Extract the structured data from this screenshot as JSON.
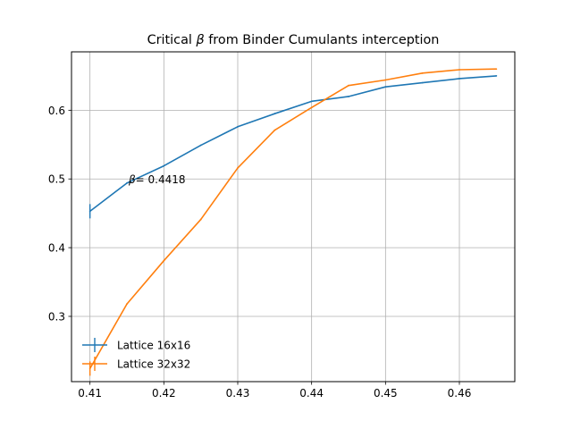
{
  "chart_data": {
    "type": "line",
    "title_prefix": "Critical ",
    "title_symbol": "β",
    "title_suffix": " from Binder Cumulants interception",
    "xlabel": "",
    "ylabel": "",
    "xlim": [
      0.4075,
      0.4675
    ],
    "ylim": [
      0.205,
      0.685
    ],
    "x_ticks": [
      0.41,
      0.42,
      0.43,
      0.44,
      0.45,
      0.46
    ],
    "x_tick_labels": [
      "0.41",
      "0.42",
      "0.43",
      "0.44",
      "0.45",
      "0.46"
    ],
    "y_ticks": [
      0.3,
      0.4,
      0.5,
      0.6
    ],
    "y_tick_labels": [
      "0.3",
      "0.4",
      "0.5",
      "0.6"
    ],
    "grid": true,
    "legend_position": "lower-left",
    "series": [
      {
        "name": "Lattice 16x16",
        "color": "#1f77b4",
        "x": [
          0.41,
          0.415,
          0.42,
          0.425,
          0.43,
          0.435,
          0.44,
          0.445,
          0.45,
          0.455,
          0.46,
          0.465
        ],
        "y": [
          0.453,
          0.494,
          0.519,
          0.549,
          0.576,
          0.595,
          0.613,
          0.62,
          0.634,
          0.64,
          0.646,
          0.65
        ]
      },
      {
        "name": "Lattice 32x32",
        "color": "#ff7f0e",
        "x": [
          0.41,
          0.415,
          0.42,
          0.425,
          0.43,
          0.435,
          0.44,
          0.445,
          0.45,
          0.455,
          0.46,
          0.465
        ],
        "y": [
          0.224,
          0.318,
          0.381,
          0.441,
          0.516,
          0.571,
          0.604,
          0.636,
          0.644,
          0.654,
          0.659,
          0.66
        ]
      }
    ],
    "annotation": {
      "symbol": "β",
      "text": "= 0.4418",
      "x": 0.415,
      "y": 0.492
    }
  }
}
